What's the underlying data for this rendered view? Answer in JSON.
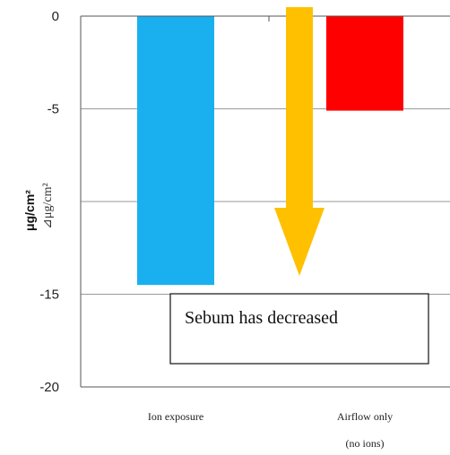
{
  "chart_data": {
    "type": "bar",
    "categories": [
      "Ion exposure",
      "Airflow only"
    ],
    "category_sublabels": [
      "",
      "(no ions)"
    ],
    "values": [
      -14.5,
      -5.1
    ],
    "bar_colors": [
      "#1ab0ef",
      "#ff0000"
    ],
    "ylabel": "μg/cm²",
    "ylabel_secondary": "⊿μg/cm²",
    "ylim": [
      -20,
      0
    ],
    "yticks": [
      0,
      -5,
      -10,
      -15,
      -20
    ],
    "ytick_labels": [
      "0",
      "-5",
      "",
      "-15",
      "-20"
    ],
    "grid": true,
    "annotation": {
      "text": "Sebum has decreased",
      "arrow_color": "#ffc000",
      "arrow_direction": "down"
    }
  }
}
